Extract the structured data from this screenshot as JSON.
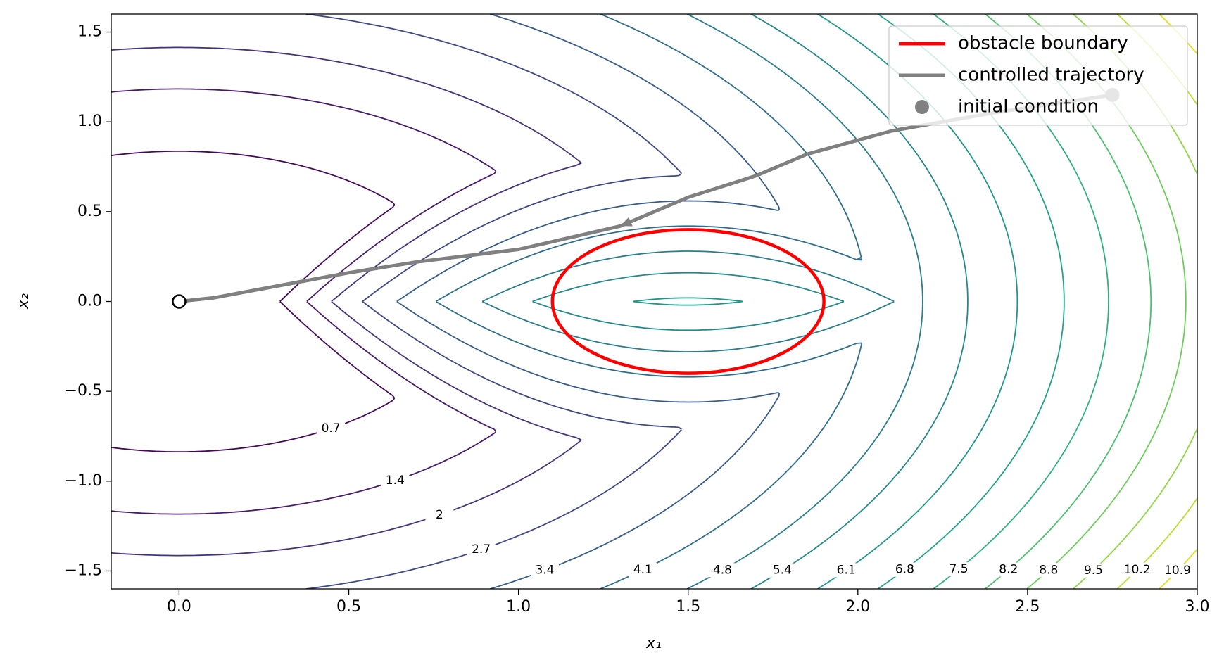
{
  "chart_data": {
    "type": "contour",
    "xlabel": "x₁",
    "ylabel": "x₂",
    "xlim": [
      -0.2,
      3.0
    ],
    "ylim": [
      -1.6,
      1.6
    ],
    "xticks": [
      {
        "value": 0,
        "label": "0.0"
      },
      {
        "value": 0.5,
        "label": "0.5"
      },
      {
        "value": 1,
        "label": "1.0"
      },
      {
        "value": 1.5,
        "label": "1.5"
      },
      {
        "value": 2,
        "label": "2.0"
      },
      {
        "value": 2.5,
        "label": "2.5"
      },
      {
        "value": 3,
        "label": "3.0"
      }
    ],
    "yticks": [
      {
        "value": -1.5,
        "label": "−1.5"
      },
      {
        "value": -1,
        "label": "−1.0"
      },
      {
        "value": -0.5,
        "label": "−0.5"
      },
      {
        "value": 0,
        "label": "0.0"
      },
      {
        "value": 0.5,
        "label": "0.5"
      },
      {
        "value": 1,
        "label": "1.0"
      },
      {
        "value": 1.5,
        "label": "1.5"
      }
    ],
    "contour": {
      "levels": [
        0.7,
        1.4,
        2.0,
        2.7,
        3.4,
        4.1,
        4.8,
        5.4,
        6.1,
        6.8,
        7.5,
        8.2,
        8.8,
        9.5,
        10.2,
        10.9
      ],
      "colors": [
        "#46085c",
        "#471a6e",
        "#46327e",
        "#3e4989",
        "#365c8d",
        "#2e6e8e",
        "#287d8e",
        "#23898e",
        "#1f988b",
        "#20a386",
        "#2db27d",
        "#4ac16d",
        "#6ccd5a",
        "#8fd744",
        "#b8de29",
        "#dde318"
      ]
    },
    "series": [
      {
        "name": "obstacle boundary",
        "color": "#ff0000",
        "center": [
          1.5,
          0
        ],
        "radius": 0.4
      },
      {
        "name": "controlled trajectory",
        "color": "#808080",
        "x": [
          2.75,
          2.4,
          2.1,
          1.85,
          1.7,
          1.5,
          1.3,
          1.0,
          0.7,
          0.5,
          0.3,
          0.1,
          0
        ],
        "y": [
          1.15,
          1.05,
          0.95,
          0.82,
          0.7,
          0.58,
          0.42,
          0.29,
          0.22,
          0.16,
          0.09,
          0.02,
          0
        ]
      },
      {
        "name": "initial condition",
        "color": "#808080",
        "x": [
          2.75
        ],
        "y": [
          1.15
        ]
      }
    ],
    "target": {
      "x": 0,
      "y": 0
    },
    "legend": "upper right"
  }
}
